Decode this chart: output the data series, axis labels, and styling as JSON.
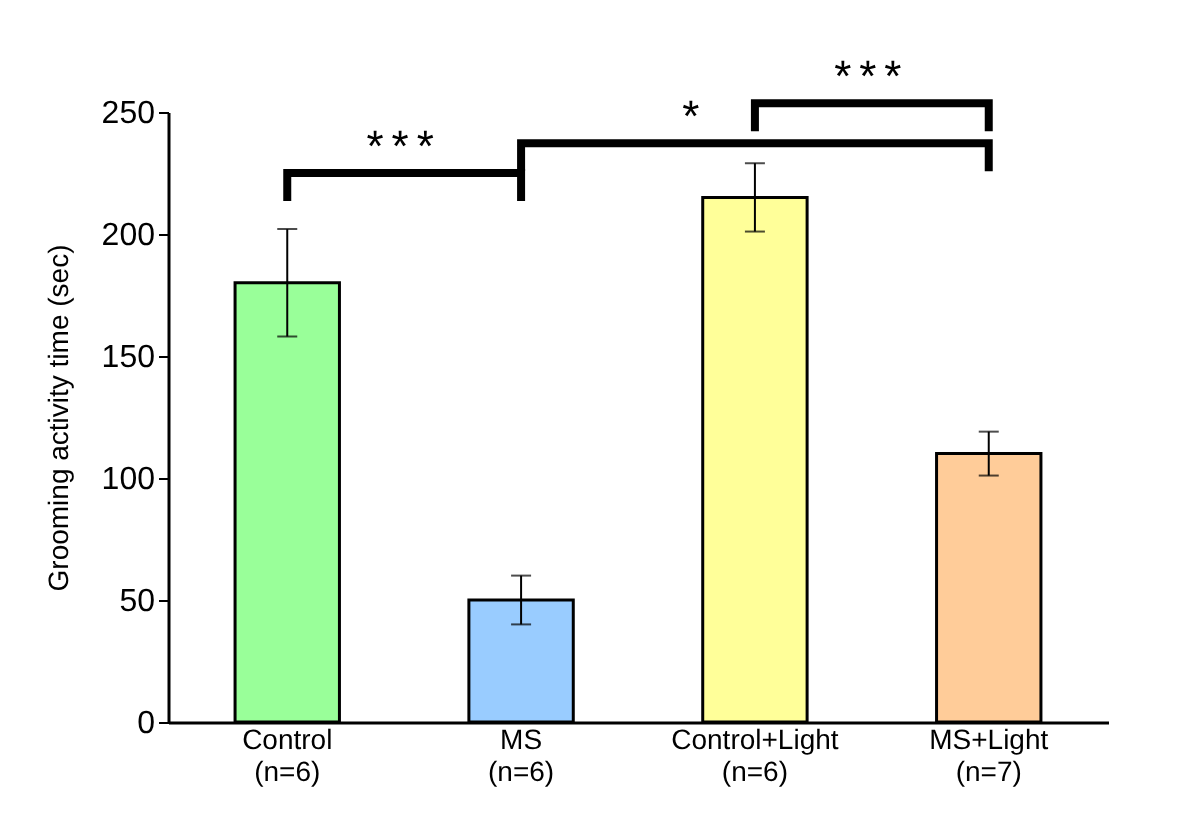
{
  "chart_data": {
    "type": "bar",
    "ylabel": "Grooming activity time (sec)",
    "categories": [
      "Control\n(n=6)",
      "MS\n(n=6)",
      "Control+Light\n(n=6)",
      "MS+Light\n(n=7)"
    ],
    "values": [
      180,
      50,
      215,
      110
    ],
    "colors": [
      "#99ff99",
      "#99ccff",
      "#ffff99",
      "#ffcc99"
    ],
    "errors": [
      22,
      10,
      14,
      9
    ],
    "ylim": [
      0,
      250
    ],
    "yticks": [
      0,
      50,
      100,
      150,
      200,
      250
    ],
    "grid": false,
    "annotations": [
      "***",
      "*",
      "***"
    ]
  }
}
